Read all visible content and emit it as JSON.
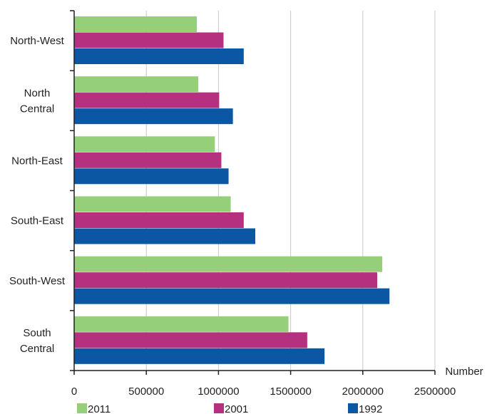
{
  "chart_data": {
    "type": "bar",
    "orientation": "horizontal",
    "categories": [
      "North-West",
      "North Central",
      "North-East",
      "South-East",
      "South-West",
      "South Central"
    ],
    "category_lines": [
      [
        "North-West"
      ],
      [
        "North",
        "Central"
      ],
      [
        "North-East"
      ],
      [
        "South-East"
      ],
      [
        "South-West"
      ],
      [
        "South",
        "Central"
      ]
    ],
    "series": [
      {
        "name": "2011",
        "color": "#95cf7a",
        "values": [
          850000,
          860000,
          975000,
          1085000,
          2135000,
          1485000
        ]
      },
      {
        "name": "2001",
        "color": "#b5307f",
        "values": [
          1035000,
          1005000,
          1020000,
          1175000,
          2100000,
          1615000
        ]
      },
      {
        "name": "1992",
        "color": "#0b57a4",
        "values": [
          1175000,
          1100000,
          1070000,
          1255000,
          2185000,
          1735000
        ]
      }
    ],
    "xlabel": "Number",
    "ylabel": "",
    "xlim": [
      0,
      2500000
    ],
    "xticks": [
      0,
      500000,
      1000000,
      1500000,
      2000000,
      2500000
    ],
    "xtick_labels": [
      "0",
      "500000",
      "1000000",
      "1500000",
      "2000000",
      "2500000"
    ],
    "grid": "vertical",
    "legend_position": "bottom"
  }
}
